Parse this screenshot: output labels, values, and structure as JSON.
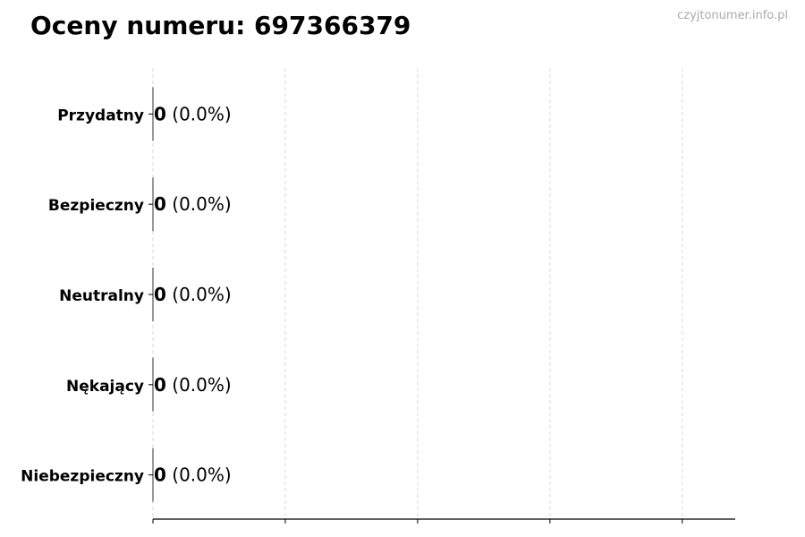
{
  "chart_data": {
    "type": "bar",
    "orientation": "horizontal",
    "title": "Oceny numeru: 697366379",
    "categories": [
      "Przydatny",
      "Bezpieczny",
      "Neutralny",
      "Nękający",
      "Niebezpieczny"
    ],
    "values": [
      0,
      0,
      0,
      0,
      0
    ],
    "data_labels": [
      {
        "count": "0",
        "percent": "(0.0%)"
      },
      {
        "count": "0",
        "percent": "(0.0%)"
      },
      {
        "count": "0",
        "percent": "(0.0%)"
      },
      {
        "count": "0",
        "percent": "(0.0%)"
      },
      {
        "count": "0",
        "percent": "(0.0%)"
      }
    ],
    "xlabel": "",
    "ylabel": "",
    "xlim": [
      0,
      4.4
    ],
    "xticks": [
      0,
      1,
      2,
      3,
      4
    ],
    "xtick_labels_visible": false,
    "grid": "x dashed",
    "colors": {
      "bar_edge": "#333333",
      "grid": "#d9d9d9",
      "axis": "#000000"
    }
  },
  "watermark": "czyjtonumer.info.pl"
}
